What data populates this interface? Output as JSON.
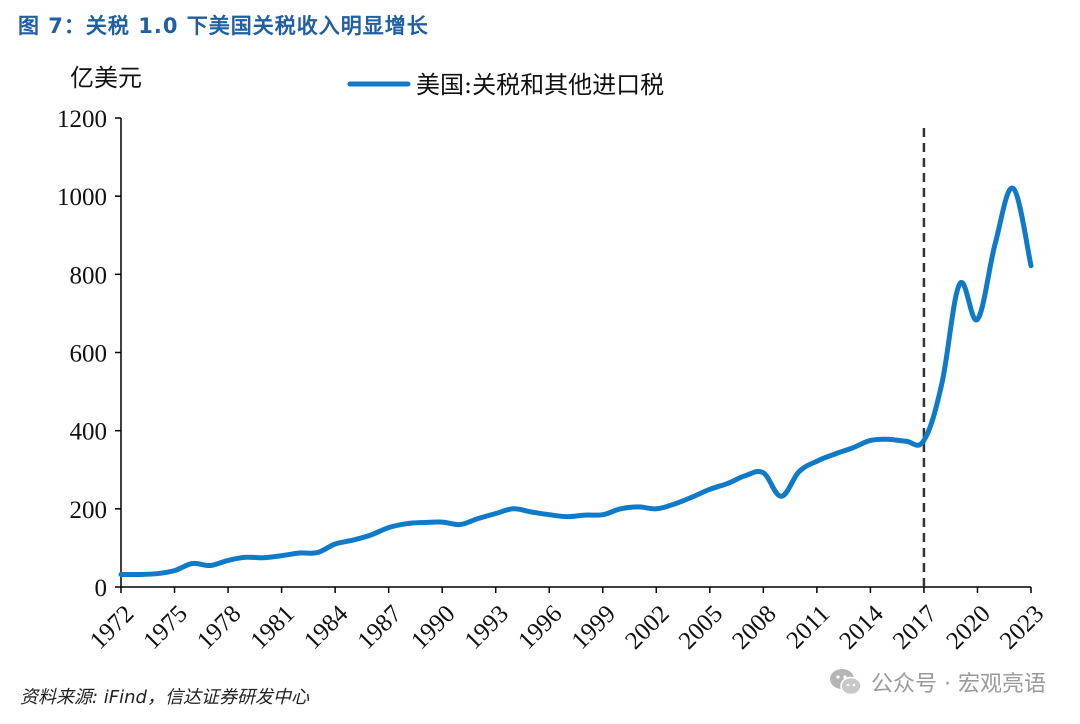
{
  "figure": {
    "title": "图 7：关税 1.0 下美国关税收入明显增长",
    "source": "资料来源: iFind，信达证券研发中心",
    "watermark": "公众号 · 宏观亮语"
  },
  "colors": {
    "title": "#1f5fa3",
    "series": "#0f7bc8",
    "axis": "#000000",
    "marker_line": "#333333"
  },
  "icons": [
    "wechat-icon"
  ],
  "chart_data": {
    "type": "line",
    "title": "",
    "xlabel": "",
    "ylabel": "亿美元",
    "ylim": [
      0,
      1200
    ],
    "yticks": [
      0,
      200,
      400,
      600,
      800,
      1000,
      1200
    ],
    "xlim": [
      1972,
      2023
    ],
    "xticks": [
      "1972",
      "1975",
      "1978",
      "1981",
      "1984",
      "1987",
      "1990",
      "1993",
      "1996",
      "1999",
      "2002",
      "2005",
      "2008",
      "2011",
      "2014",
      "2017",
      "2020",
      "2023"
    ],
    "grid": false,
    "legend_position": "top-center",
    "vertical_marker": {
      "x": 2017,
      "style": "dashed"
    },
    "x": [
      1972,
      1973,
      1974,
      1975,
      1976,
      1977,
      1978,
      1979,
      1980,
      1981,
      1982,
      1983,
      1984,
      1985,
      1986,
      1987,
      1988,
      1989,
      1990,
      1991,
      1992,
      1993,
      1994,
      1995,
      1996,
      1997,
      1998,
      1999,
      2000,
      2001,
      2002,
      2003,
      2004,
      2005,
      2006,
      2007,
      2008,
      2009,
      2010,
      2011,
      2012,
      2013,
      2014,
      2015,
      2016,
      2017,
      2018,
      2019,
      2020,
      2021,
      2022,
      2023
    ],
    "series": [
      {
        "name": "美国:关税和其他进口税",
        "values": [
          32,
          32,
          34,
          42,
          60,
          55,
          68,
          76,
          75,
          80,
          87,
          88,
          110,
          120,
          133,
          152,
          162,
          165,
          166,
          160,
          175,
          188,
          200,
          192,
          185,
          180,
          184,
          185,
          200,
          205,
          200,
          212,
          230,
          250,
          265,
          285,
          292,
          232,
          295,
          322,
          340,
          356,
          375,
          378,
          373,
          375,
          520,
          775,
          685,
          880,
          1020,
          822
        ]
      }
    ]
  }
}
